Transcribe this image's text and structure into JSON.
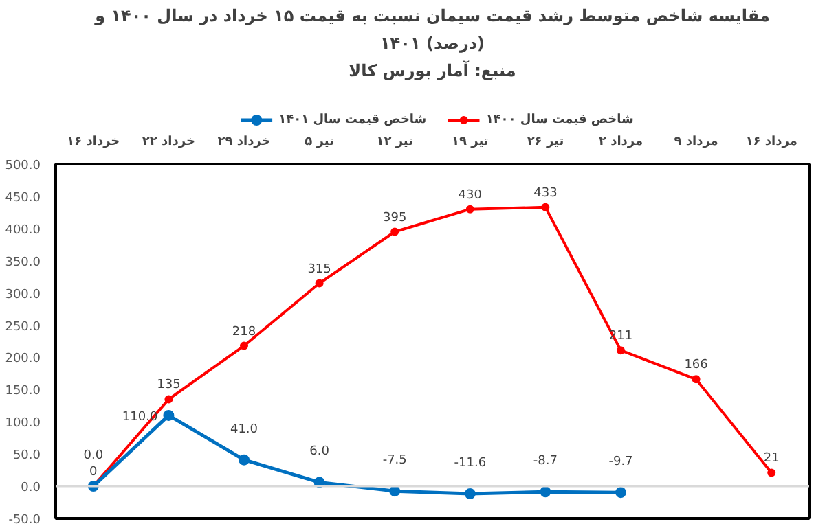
{
  "chart_data": {
    "type": "line",
    "title": "مقایسه شاخص متوسط رشد قیمت سیمان نسبت به قیمت ۱۵ خرداد در سال ۱۴۰۰ و ۱۴۰۱ (درصد)",
    "subtitle": "منبع: آمار بورس کالا",
    "categories": [
      "۱۶ خرداد",
      "۲۲ خرداد",
      "۲۹ خرداد",
      "۵ تیر",
      "۱۲ تیر",
      "۱۹ تیر",
      "۲۶ تیر",
      "۲ مرداد",
      "۹ مرداد",
      "۱۶ مرداد"
    ],
    "series": [
      {
        "name": "شاخص قیمت سال ۱۴۰۰",
        "color": "#ff0000",
        "values": [
          0,
          135,
          218,
          315,
          395,
          430,
          433,
          211,
          166,
          21
        ],
        "value_labels": [
          "0",
          "135",
          "218",
          "315",
          "395",
          "430",
          "433",
          "211",
          "166",
          "21"
        ]
      },
      {
        "name": "شاخص قیمت سال ۱۴۰۱",
        "color": "#0070c0",
        "values": [
          0.0,
          110.0,
          41.0,
          6.0,
          -7.5,
          -11.6,
          -8.7,
          -9.7,
          null,
          null
        ],
        "value_labels": [
          "0.0",
          "110.0",
          "41.0",
          "6.0",
          "-7.5",
          "-11.6",
          "-8.7",
          "-9.7",
          null,
          null
        ]
      }
    ],
    "ylim": [
      -50,
      500
    ],
    "yticks": [
      {
        "value": -50,
        "label": "-50.0"
      },
      {
        "value": 0,
        "label": "0.0"
      },
      {
        "value": 50,
        "label": "50.0"
      },
      {
        "value": 100,
        "label": "100.0"
      },
      {
        "value": 150,
        "label": "150.0"
      },
      {
        "value": 200,
        "label": "200.0"
      },
      {
        "value": 250,
        "label": "250.0"
      },
      {
        "value": 300,
        "label": "300.0"
      },
      {
        "value": 350,
        "label": "350.0"
      },
      {
        "value": 400,
        "label": "400.0"
      },
      {
        "value": 450,
        "label": "450.0"
      },
      {
        "value": 500,
        "label": "500.0"
      }
    ],
    "ref_lines": [
      {
        "axis": "y",
        "value": 0,
        "color": "#d9d9d9"
      }
    ],
    "grid": false,
    "legend": "top",
    "marker": "circle",
    "line_style": "solid"
  }
}
